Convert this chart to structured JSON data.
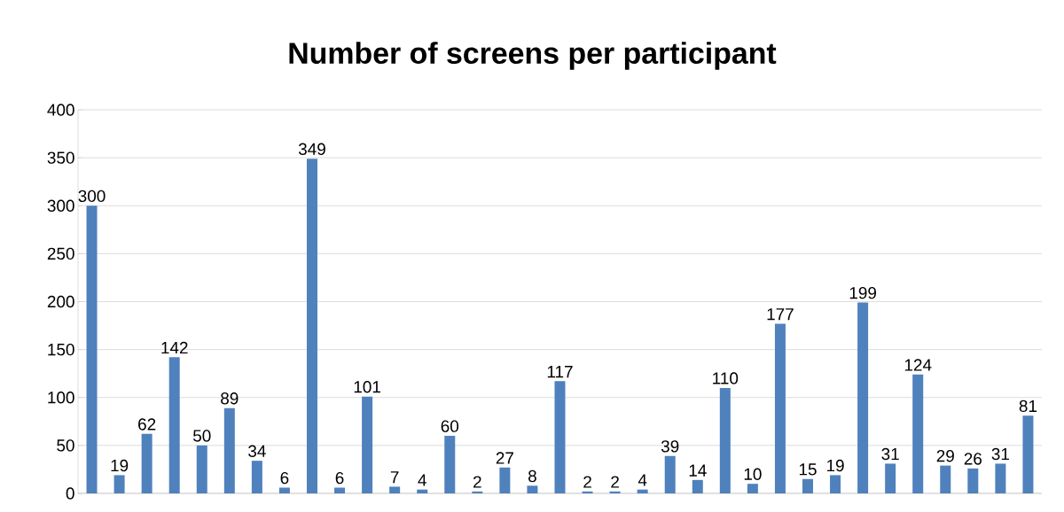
{
  "chart_data": {
    "type": "bar",
    "title": "Number of screens per participant",
    "categories": [
      null,
      null,
      null,
      null,
      null,
      null,
      null,
      null,
      null,
      null,
      null,
      null,
      null,
      null,
      null,
      null,
      null,
      null,
      null,
      null,
      null,
      null,
      null,
      null,
      null,
      null,
      null,
      null,
      null,
      null,
      null,
      null,
      null,
      null,
      null
    ],
    "values": [
      300,
      19,
      62,
      142,
      50,
      89,
      34,
      6,
      349,
      6,
      101,
      7,
      4,
      60,
      2,
      27,
      8,
      117,
      2,
      2,
      4,
      39,
      14,
      110,
      10,
      177,
      15,
      19,
      199,
      31,
      124,
      29,
      26,
      31,
      81
    ],
    "color": "#4f81bd",
    "ylim": [
      0,
      400
    ],
    "yticks": [
      0,
      50,
      100,
      150,
      200,
      250,
      300,
      350,
      400
    ],
    "grid": "y",
    "data_labels": true
  }
}
